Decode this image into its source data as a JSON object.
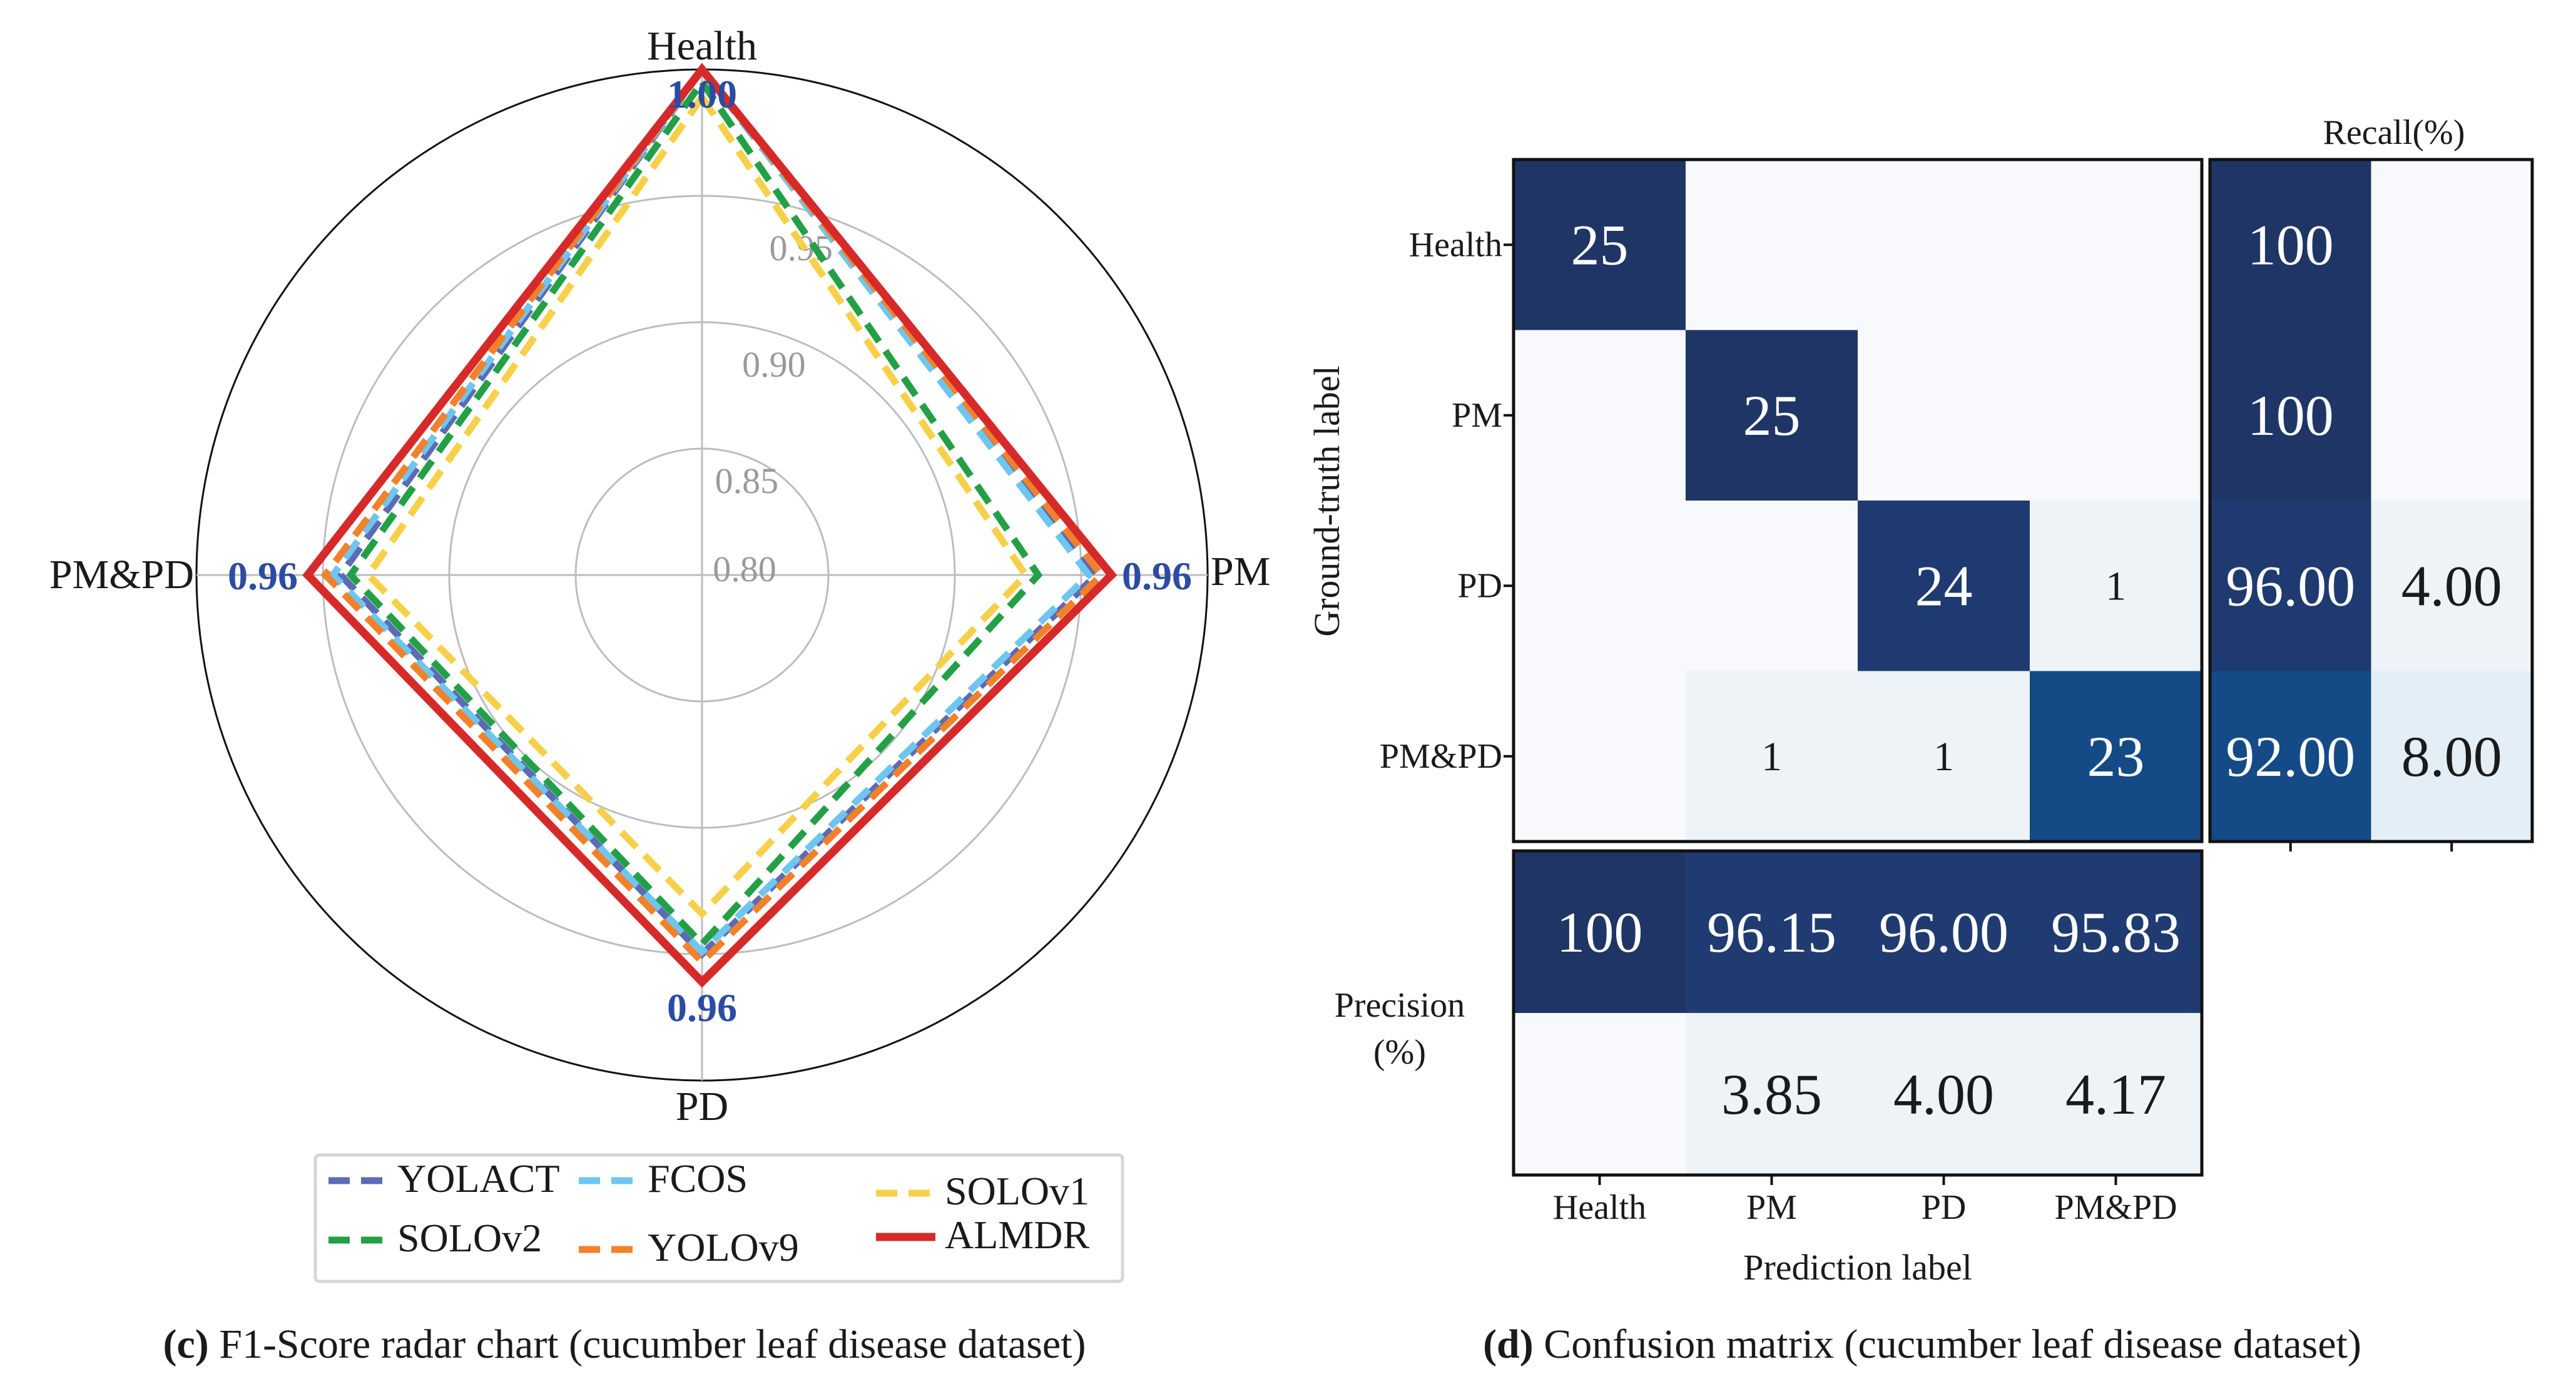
{
  "chart_data": [
    {
      "type": "radar",
      "title": "F1-Score radar chart (cucumber leaf disease dataset)",
      "caption_prefix": "(c)",
      "caption_text": " F1-Score radar chart (cucumber leaf disease dataset)",
      "axes": [
        "Health",
        "PM",
        "PD",
        "PM&PD"
      ],
      "rlim": [
        0.8,
        1.0
      ],
      "rticks": [
        "0.80",
        "0.85",
        "0.90",
        "0.95"
      ],
      "grid": true,
      "series": [
        {
          "name": "YOLACT",
          "color": "#5b6bb4",
          "style": "dashed",
          "values": [
            1.0,
            0.956,
            0.95,
            0.943
          ]
        },
        {
          "name": "FCOS",
          "color": "#6ec6ee",
          "style": "dashed",
          "values": [
            1.0,
            0.953,
            0.949,
            0.946
          ]
        },
        {
          "name": "SOLOv1",
          "color": "#f7d04a",
          "style": "dashed",
          "values": [
            0.989,
            0.928,
            0.934,
            0.932
          ]
        },
        {
          "name": "SOLOv2",
          "color": "#23a046",
          "style": "dashed",
          "values": [
            0.995,
            0.933,
            0.946,
            0.939
          ]
        },
        {
          "name": "YOLOv9",
          "color": "#f2812b",
          "style": "dashed",
          "values": [
            1.0,
            0.958,
            0.953,
            0.949
          ]
        },
        {
          "name": "ALMDR",
          "color": "#d62a2a",
          "style": "solid",
          "values": [
            1.0,
            0.962,
            0.961,
            0.956
          ]
        }
      ],
      "annotations": [
        "1.00",
        "0.96",
        "0.96",
        "0.96"
      ],
      "annotation_color": "#2c4ca3",
      "legend_position": "bottom"
    },
    {
      "type": "heatmap",
      "title": "Confusion matrix (cucumber leaf disease dataset)",
      "caption_prefix": "(d)",
      "caption_text": " Confusion matrix (cucumber leaf disease dataset)",
      "xlabel": "Prediction label",
      "ylabel": "Ground-truth label",
      "labels": [
        "Health",
        "PM",
        "PD",
        "PM&PD"
      ],
      "matrix": [
        [
          25,
          0,
          0,
          0
        ],
        [
          0,
          25,
          0,
          0
        ],
        [
          0,
          0,
          24,
          1
        ],
        [
          0,
          1,
          1,
          23
        ]
      ],
      "matrix_colors": [
        [
          "#1f3566",
          "#f7f9fc",
          "#f7f9fc",
          "#f7f9fc"
        ],
        [
          "#f7f9fc",
          "#1f3566",
          "#f7f9fc",
          "#f7f9fc"
        ],
        [
          "#f7f9fc",
          "#f7f9fc",
          "#1f3a70",
          "#eef3f8"
        ],
        [
          "#f7f9fc",
          "#eef3f8",
          "#eef3f8",
          "#144a86"
        ]
      ],
      "recall_title": "Recall(%)",
      "recall": [
        [
          "100",
          ""
        ],
        [
          "100",
          ""
        ],
        [
          "96.00",
          "4.00"
        ],
        [
          "92.00",
          "8.00"
        ]
      ],
      "recall_colors": [
        [
          "#1f3566",
          "#f7f9fc"
        ],
        [
          "#1f3566",
          "#f7f9fc"
        ],
        [
          "#1f3a70",
          "#eef3f8"
        ],
        [
          "#144a86",
          "#e4eef6"
        ]
      ],
      "precision_title": [
        "Precision",
        "(%)"
      ],
      "precision": [
        [
          "100",
          "96.15",
          "96.00",
          "95.83"
        ],
        [
          "",
          "3.85",
          "4.00",
          "4.17"
        ]
      ],
      "precision_colors": [
        [
          "#1f3566",
          "#1f3b72",
          "#1f3b72",
          "#1f3b72"
        ],
        [
          "#f7f9fc",
          "#eef3f8",
          "#eef3f8",
          "#eef3f8"
        ]
      ]
    }
  ]
}
